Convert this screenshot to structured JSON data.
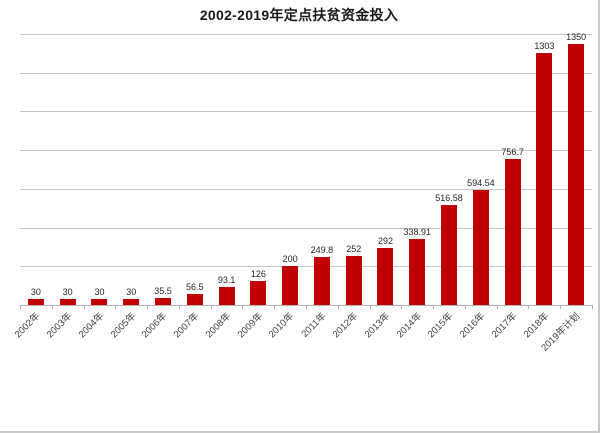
{
  "chart_data": {
    "type": "bar",
    "title": "2002-2019年定点扶贫资金投入",
    "categories": [
      "2002年",
      "2003年",
      "2004年",
      "2005年",
      "2006年",
      "2007年",
      "2008年",
      "2009年",
      "2010年",
      "2011年",
      "2012年",
      "2013年",
      "2014年",
      "2015年",
      "2016年",
      "2017年",
      "2018年",
      "2019年计划"
    ],
    "values": [
      30,
      30,
      30,
      30,
      35.5,
      56.5,
      93.1,
      126,
      200,
      249.8,
      252,
      292,
      338.91,
      516.58,
      594.54,
      756.7,
      1303,
      1350
    ],
    "value_labels": [
      "30",
      "30",
      "30",
      "30",
      "35.5",
      "56.5",
      "93.1",
      "126",
      "200",
      "249.8",
      "252",
      "292",
      "338.91",
      "516.58",
      "594.54",
      "756.7",
      "1303",
      "1350"
    ],
    "xlabel": "",
    "ylabel": "",
    "ylim": [
      0,
      1400
    ],
    "gridline_step": 200,
    "grid": true,
    "legend_position": "none",
    "y_axis_tick_labels_visible": false,
    "bar_color": "#c00000",
    "gridline_color": "#c6c6c6",
    "axis_color": "#b3b3b3",
    "label_color": "#262626",
    "x_label_color": "#404040",
    "title_color": "#1a1a1a",
    "frame_border_color": "#c9c9c9"
  }
}
